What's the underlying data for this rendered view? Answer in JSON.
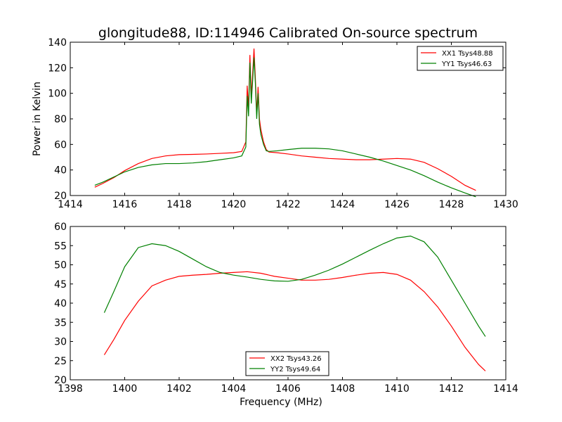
{
  "figure": {
    "title": "glongitude88, ID:114946 Calibrated On-source spectrum"
  },
  "chart_data": [
    {
      "type": "line",
      "title": "glongitude88, ID:114946 Calibrated On-source spectrum",
      "xlabel": "",
      "ylabel": "Power in Kelvin",
      "xlim": [
        1414,
        1430
      ],
      "ylim": [
        20,
        140
      ],
      "xticks": [
        1414,
        1416,
        1418,
        1420,
        1422,
        1424,
        1426,
        1428,
        1430
      ],
      "yticks": [
        20,
        40,
        60,
        80,
        100,
        120,
        140
      ],
      "grid": false,
      "legend_position": "top-right",
      "series": [
        {
          "name": "XX1 Tsys48.88",
          "color": "#ff0000",
          "x": [
            1414.9,
            1415.2,
            1415.6,
            1416.0,
            1416.5,
            1417.0,
            1417.5,
            1418.0,
            1418.5,
            1419.0,
            1419.5,
            1420.0,
            1420.3,
            1420.45,
            1420.5,
            1420.55,
            1420.6,
            1420.65,
            1420.7,
            1420.75,
            1420.8,
            1420.85,
            1420.9,
            1420.95,
            1421.0,
            1421.1,
            1421.2,
            1421.3,
            1421.6,
            1422.0,
            1422.5,
            1423.0,
            1423.5,
            1424.0,
            1424.5,
            1425.0,
            1425.5,
            1426.0,
            1426.5,
            1427.0,
            1427.5,
            1428.0,
            1428.5,
            1428.9
          ],
          "values": [
            26.5,
            29.5,
            34,
            39.5,
            45,
            49,
            51,
            52,
            52.2,
            52.5,
            53,
            53.5,
            54.5,
            62,
            106,
            88,
            130,
            98,
            115,
            135,
            112,
            84,
            105,
            80,
            72,
            62,
            56,
            54,
            53.5,
            52.5,
            51,
            50,
            49,
            48.5,
            48,
            48,
            48.5,
            49,
            48.5,
            46,
            41,
            35,
            28,
            24
          ]
        },
        {
          "name": "YY1 Tsys46.63",
          "color": "#008000",
          "x": [
            1414.9,
            1415.2,
            1415.6,
            1416.0,
            1416.5,
            1417.0,
            1417.5,
            1418.0,
            1418.5,
            1419.0,
            1419.5,
            1420.0,
            1420.3,
            1420.45,
            1420.5,
            1420.55,
            1420.6,
            1420.65,
            1420.7,
            1420.75,
            1420.8,
            1420.85,
            1420.9,
            1420.95,
            1421.0,
            1421.1,
            1421.2,
            1421.3,
            1421.6,
            1422.0,
            1422.5,
            1423.0,
            1423.5,
            1424.0,
            1424.5,
            1425.0,
            1425.5,
            1426.0,
            1426.5,
            1427.0,
            1427.5,
            1428.0,
            1428.5,
            1428.9
          ],
          "values": [
            28,
            30.5,
            34.5,
            38.5,
            42,
            44,
            45,
            45,
            45.5,
            46.5,
            48,
            49.5,
            51,
            58,
            98,
            82,
            124,
            92,
            110,
            128,
            108,
            80,
            100,
            76,
            68,
            60,
            55,
            54.5,
            55,
            56,
            57,
            57,
            56.5,
            55,
            52.5,
            50,
            47,
            43.5,
            40,
            35.5,
            30.5,
            26,
            22,
            19
          ]
        }
      ]
    },
    {
      "type": "line",
      "title": "",
      "xlabel": "Frequency (MHz)",
      "ylabel": "",
      "xlim": [
        1398,
        1414
      ],
      "ylim": [
        20,
        60
      ],
      "xticks": [
        1398,
        1400,
        1402,
        1404,
        1406,
        1408,
        1410,
        1412,
        1414
      ],
      "yticks": [
        20,
        25,
        30,
        35,
        40,
        45,
        50,
        55,
        60
      ],
      "grid": false,
      "legend_position": "bottom-center",
      "series": [
        {
          "name": "XX2 Tsys43.26",
          "color": "#ff0000",
          "x": [
            1399.25,
            1399.6,
            1400.0,
            1400.5,
            1401.0,
            1401.5,
            1402.0,
            1402.5,
            1403.0,
            1403.5,
            1404.0,
            1404.5,
            1405.0,
            1405.5,
            1406.0,
            1406.5,
            1407.0,
            1407.5,
            1408.0,
            1408.5,
            1409.0,
            1409.5,
            1410.0,
            1410.5,
            1411.0,
            1411.5,
            1412.0,
            1412.5,
            1413.0,
            1413.25
          ],
          "values": [
            26.5,
            30.5,
            35.5,
            40.5,
            44.5,
            46,
            47,
            47.3,
            47.5,
            47.8,
            48,
            48.2,
            47.8,
            47,
            46.5,
            46,
            46,
            46.2,
            46.7,
            47.3,
            47.8,
            48,
            47.5,
            46,
            43,
            39,
            34,
            28.5,
            24,
            22.3
          ]
        },
        {
          "name": "YY2 Tsys49.64",
          "color": "#008000",
          "x": [
            1399.25,
            1399.6,
            1400.0,
            1400.5,
            1401.0,
            1401.5,
            1402.0,
            1402.5,
            1403.0,
            1403.5,
            1404.0,
            1404.5,
            1405.0,
            1405.5,
            1406.0,
            1406.5,
            1407.0,
            1407.5,
            1408.0,
            1408.5,
            1409.0,
            1409.5,
            1410.0,
            1410.5,
            1411.0,
            1411.5,
            1412.0,
            1412.5,
            1413.0,
            1413.25
          ],
          "values": [
            37.5,
            43,
            49.5,
            54.5,
            55.5,
            55,
            53.5,
            51.5,
            49.5,
            48,
            47.3,
            46.8,
            46.2,
            45.8,
            45.7,
            46.2,
            47.3,
            48.6,
            50.2,
            52,
            53.8,
            55.5,
            57,
            57.5,
            56,
            52,
            46,
            40,
            34,
            31.3
          ]
        }
      ]
    }
  ]
}
